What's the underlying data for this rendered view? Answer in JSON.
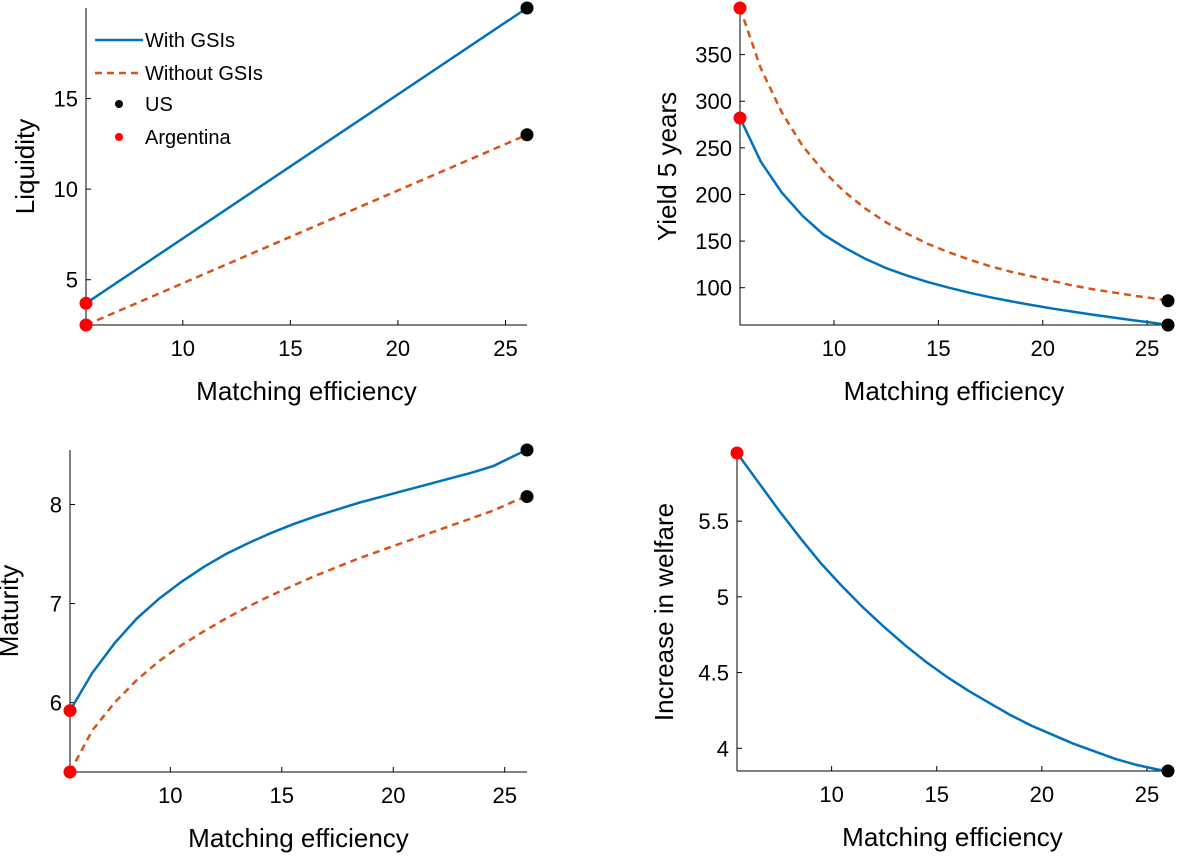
{
  "legend": {
    "entries": [
      {
        "label": "With GSIs",
        "marker": "line-solid",
        "color": "#0072BD"
      },
      {
        "label": "Without GSIs",
        "marker": "line-dashed",
        "color": "#D95319"
      },
      {
        "label": "US",
        "marker": "dot",
        "color": "#000000"
      },
      {
        "label": "Argentina",
        "marker": "dot",
        "color": "#FF0000"
      }
    ],
    "placement": "top-left of first panel"
  },
  "colors": {
    "with": "#0072BD",
    "without": "#D95319",
    "us": "#000000",
    "argentina": "#FF0000"
  },
  "chart_data": [
    {
      "type": "line",
      "xlabel": "Matching efficiency",
      "ylabel": "Liquidity",
      "xlim": [
        5.5,
        26
      ],
      "ylim": [
        2.5,
        20
      ],
      "xticks": [
        10,
        15,
        20,
        25
      ],
      "yticks": [
        5,
        10,
        15
      ],
      "x": [
        5.5,
        26
      ],
      "series": [
        {
          "name": "With GSIs",
          "style": "solid",
          "values": [
            3.7,
            20.0
          ]
        },
        {
          "name": "Without GSIs",
          "style": "dashed",
          "values": [
            2.5,
            13.0
          ]
        }
      ],
      "markers": [
        {
          "name": "US",
          "color": "#000000",
          "points": [
            [
              26,
              20.0
            ],
            [
              26,
              13.0
            ]
          ]
        },
        {
          "name": "Argentina",
          "color": "#FF0000",
          "points": [
            [
              5.5,
              3.7
            ],
            [
              5.5,
              2.5
            ]
          ]
        }
      ]
    },
    {
      "type": "line",
      "xlabel": "Matching efficiency",
      "ylabel": "Yield 5 years",
      "xlim": [
        5.5,
        26
      ],
      "ylim": [
        60,
        400
      ],
      "xticks": [
        10,
        15,
        20,
        25
      ],
      "yticks": [
        100,
        150,
        200,
        250,
        300,
        350
      ],
      "x": [
        5.5,
        6.5,
        7.5,
        8.5,
        9.5,
        10.5,
        11.5,
        12.5,
        13.5,
        14.5,
        15.5,
        16.5,
        17.5,
        18.5,
        19.5,
        20.5,
        21.5,
        22.5,
        23.5,
        24.5,
        25.5,
        26
      ],
      "series": [
        {
          "name": "With GSIs",
          "style": "solid",
          "values": [
            282,
            235,
            202,
            177,
            157,
            143,
            131,
            121,
            113,
            106,
            100,
            94.5,
            89.7,
            85.3,
            81.3,
            77.5,
            74.0,
            70.7,
            67.6,
            64.6,
            61.7,
            60
          ]
        },
        {
          "name": "Without GSIs",
          "style": "dashed",
          "values": [
            400,
            335,
            288,
            252,
            225,
            203,
            185,
            170,
            158,
            147,
            138,
            130,
            123,
            117,
            112,
            107,
            102,
            98,
            94.5,
            91,
            88,
            86
          ]
        }
      ],
      "markers": [
        {
          "name": "US",
          "color": "#000000",
          "points": [
            [
              26,
              60
            ],
            [
              26,
              86
            ]
          ]
        },
        {
          "name": "Argentina",
          "color": "#FF0000",
          "points": [
            [
              5.5,
              282
            ],
            [
              5.5,
              400
            ]
          ]
        }
      ]
    },
    {
      "type": "line",
      "xlabel": "Matching efficiency",
      "ylabel": "Maturity",
      "xlim": [
        5.5,
        26
      ],
      "ylim": [
        5.3,
        8.55
      ],
      "xticks": [
        10,
        15,
        20,
        25
      ],
      "yticks": [
        6,
        7,
        8
      ],
      "x": [
        5.5,
        6.5,
        7.5,
        8.5,
        9.5,
        10.5,
        11.5,
        12.5,
        13.5,
        14.5,
        15.5,
        16.5,
        17.5,
        18.5,
        19.5,
        20.5,
        21.5,
        22.5,
        23.5,
        24.5,
        25.5,
        26
      ],
      "series": [
        {
          "name": "With GSIs",
          "style": "solid",
          "values": [
            5.92,
            6.3,
            6.6,
            6.85,
            7.05,
            7.22,
            7.37,
            7.5,
            7.61,
            7.71,
            7.8,
            7.88,
            7.95,
            8.02,
            8.08,
            8.14,
            8.2,
            8.26,
            8.32,
            8.39,
            8.5,
            8.55
          ]
        },
        {
          "name": "Without GSIs",
          "style": "dashed",
          "values": [
            5.3,
            5.72,
            6.0,
            6.23,
            6.42,
            6.58,
            6.72,
            6.85,
            6.97,
            7.08,
            7.18,
            7.28,
            7.37,
            7.46,
            7.54,
            7.62,
            7.7,
            7.78,
            7.86,
            7.94,
            8.04,
            8.08
          ]
        }
      ],
      "markers": [
        {
          "name": "US",
          "color": "#000000",
          "points": [
            [
              26,
              8.55
            ],
            [
              26,
              8.08
            ]
          ]
        },
        {
          "name": "Argentina",
          "color": "#FF0000",
          "points": [
            [
              5.5,
              5.92
            ],
            [
              5.5,
              5.3
            ]
          ]
        }
      ]
    },
    {
      "type": "line",
      "xlabel": "Matching efficiency",
      "ylabel": "Increase in welfare",
      "xlim": [
        5.5,
        26
      ],
      "ylim": [
        3.85,
        5.95
      ],
      "xticks": [
        10,
        15,
        20,
        25
      ],
      "yticks": [
        4,
        4.5,
        5,
        5.5
      ],
      "x": [
        5.5,
        6.5,
        7.5,
        8.5,
        9.5,
        10.5,
        11.5,
        12.5,
        13.5,
        14.5,
        15.5,
        16.5,
        17.5,
        18.5,
        19.5,
        20.5,
        21.5,
        22.5,
        23.5,
        24.5,
        25.5,
        26
      ],
      "series": [
        {
          "name": "With GSIs",
          "style": "solid",
          "values": [
            5.95,
            5.76,
            5.57,
            5.39,
            5.22,
            5.07,
            4.93,
            4.8,
            4.68,
            4.57,
            4.47,
            4.38,
            4.3,
            4.22,
            4.15,
            4.09,
            4.03,
            3.98,
            3.93,
            3.89,
            3.86,
            3.85
          ]
        }
      ],
      "markers": [
        {
          "name": "US",
          "color": "#000000",
          "points": [
            [
              26,
              3.85
            ]
          ]
        },
        {
          "name": "Argentina",
          "color": "#FF0000",
          "points": [
            [
              5.5,
              5.95
            ]
          ]
        }
      ]
    }
  ]
}
